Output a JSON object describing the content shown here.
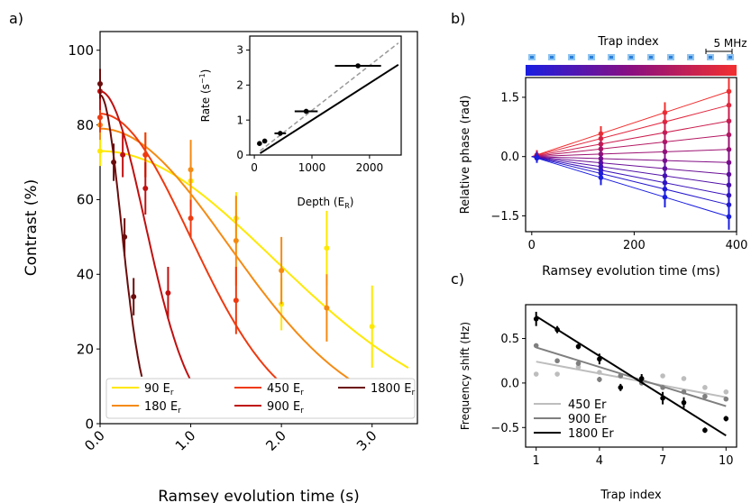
{
  "panel_labels": {
    "a": "a)",
    "b": "b)",
    "c": "c)"
  },
  "chart_data": [
    {
      "id": "a_main",
      "type": "line",
      "xlabel": "Ramsey evolution time (s)",
      "ylabel": "Contrast (%)",
      "xlim": [
        0,
        3.5
      ],
      "ylim": [
        0,
        105
      ],
      "xticks": [
        0,
        1,
        2,
        3
      ],
      "xtick_labels": [
        "0.0",
        "1.0",
        "2.0",
        "3.0"
      ],
      "yticks": [
        0,
        20,
        40,
        60,
        80,
        100
      ],
      "ytick_labels": [
        "0",
        "20",
        "40",
        "60",
        "80",
        "100"
      ],
      "legend_location": "lower-left",
      "series": [
        {
          "name": "90 E",
          "sub": "r",
          "color": "#ffe800",
          "points": [
            [
              0,
              73,
              4
            ],
            [
              1.0,
              65,
              7
            ],
            [
              1.5,
              55,
              7
            ],
            [
              2.0,
              32,
              7
            ],
            [
              2.5,
              47,
              10
            ],
            [
              3.0,
              26,
              11
            ]
          ],
          "fit": {
            "A": 73,
            "tau": 2.7,
            "n": 2,
            "xmax": 3.4
          }
        },
        {
          "name": "180 E",
          "sub": "r",
          "color": "#f58a12",
          "points": [
            [
              0,
              80,
              4
            ],
            [
              0.5,
              72,
              6
            ],
            [
              1.0,
              68,
              8
            ],
            [
              1.5,
              49,
              12
            ],
            [
              2.0,
              41,
              9
            ],
            [
              2.5,
              31,
              9
            ]
          ],
          "fit": {
            "A": 79,
            "tau": 2.0,
            "n": 2,
            "xmax": 2.9
          }
        },
        {
          "name": "450 E",
          "sub": "r",
          "color": "#ee3a10",
          "points": [
            [
              0,
              82,
              4
            ],
            [
              0.5,
              72,
              6
            ],
            [
              1.0,
              55,
              5
            ],
            [
              1.5,
              33,
              9
            ]
          ],
          "fit": {
            "A": 83,
            "tau": 1.4,
            "n": 2,
            "xmax": 1.95
          }
        },
        {
          "name": "900 E",
          "sub": "r",
          "color": "#c01010",
          "points": [
            [
              0,
              89,
              5
            ],
            [
              0.25,
              72,
              6
            ],
            [
              0.5,
              63,
              7
            ],
            [
              0.75,
              35,
              7
            ]
          ],
          "fit": {
            "A": 89,
            "tau": 0.7,
            "n": 2,
            "xmax": 1.0
          }
        },
        {
          "name": "1800 E",
          "sub": "r",
          "color": "#6b0c0c",
          "points": [
            [
              0,
              91,
              4
            ],
            [
              0.15,
              70,
              5
            ],
            [
              0.27,
              50,
              5
            ],
            [
              0.37,
              34,
              5
            ]
          ],
          "fit": {
            "A": 88,
            "tau": 0.33,
            "n": 2,
            "xmax": 0.46
          }
        }
      ]
    },
    {
      "id": "a_inset",
      "type": "scatter",
      "xlabel": "Depth (E",
      "xlabel_sub": "R",
      "xlabel_tail": ")",
      "ylabel": "Rate (s",
      "ylabel_sup": "−1",
      "ylabel_tail": ")",
      "xlim": [
        -80,
        2550
      ],
      "ylim": [
        0,
        3.4
      ],
      "xticks": [
        0,
        1000,
        2000
      ],
      "xtick_labels": [
        "0",
        "1000",
        "2000"
      ],
      "yticks": [
        0,
        1,
        2,
        3
      ],
      "ytick_labels": [
        "0",
        "1",
        "2",
        "3"
      ],
      "points": [
        [
          90,
          0.33,
          20
        ],
        [
          180,
          0.4,
          40
        ],
        [
          450,
          0.62,
          100
        ],
        [
          900,
          1.25,
          200
        ],
        [
          1800,
          2.55,
          400
        ]
      ],
      "lines": [
        {
          "style": "dashed",
          "color": "#999999",
          "x": [
            100,
            2500
          ],
          "y": [
            0.12,
            3.2
          ]
        },
        {
          "style": "solid",
          "color": "#000000",
          "x": [
            100,
            2500
          ],
          "y": [
            0.05,
            2.58
          ]
        }
      ]
    },
    {
      "id": "b_main",
      "type": "line",
      "title": "Trap index",
      "scale_label": "5 MHz",
      "xlabel": "Ramsey evolution time (ms)",
      "ylabel": "Relative phase (rad)",
      "xlim": [
        -12,
        400
      ],
      "ylim": [
        -1.9,
        2.0
      ],
      "xticks": [
        0,
        200,
        400
      ],
      "xtick_labels": [
        "0",
        "200",
        "400"
      ],
      "yticks": [
        -1.5,
        0,
        1.5
      ],
      "ytick_labels": [
        "−1.5",
        "0.0",
        "1.5"
      ],
      "times": [
        10,
        135,
        260,
        385
      ],
      "slopes": [
        1.65,
        1.3,
        0.9,
        0.55,
        0.18,
        -0.15,
        -0.45,
        -0.72,
        -0.98,
        -1.22,
        -1.52
      ],
      "colors": [
        "#f22f2f",
        "#e2273e",
        "#cc1e4f",
        "#b41862",
        "#9c1273",
        "#830f85",
        "#6a0e96",
        "#5010a8",
        "#3a14bb",
        "#2518cc",
        "#1a1ee0"
      ]
    },
    {
      "id": "c_main",
      "type": "scatter",
      "xlabel": "Trap index",
      "ylabel": "Frequency shift (Hz)",
      "xlim": [
        0.5,
        10.5
      ],
      "ylim": [
        -0.72,
        0.88
      ],
      "xticks": [
        1,
        4,
        7,
        10
      ],
      "xtick_labels": [
        "1",
        "4",
        "7",
        "10"
      ],
      "yticks": [
        -0.5,
        0,
        0.5
      ],
      "ytick_labels": [
        "−0.5",
        "0.0",
        "0.5"
      ],
      "legend_location": "lower-left",
      "series": [
        {
          "name": "450 Er",
          "color": "#bdbdbd",
          "y": [
            0.1,
            0.1,
            0.18,
            0.12,
            0.08,
            0.03,
            0.08,
            0.05,
            -0.05,
            -0.1
          ],
          "err": [
            0,
            0,
            0,
            0,
            0,
            0,
            0,
            0,
            0,
            0
          ],
          "fit": [
            0.24,
            -0.16
          ]
        },
        {
          "name": "900 Er",
          "color": "#7f7f7f",
          "y": [
            0.42,
            0.25,
            0.22,
            0.04,
            0.08,
            0.0,
            -0.05,
            -0.1,
            -0.15,
            -0.18
          ],
          "err": [
            0,
            0,
            0,
            0.03,
            0,
            0,
            0,
            0,
            0,
            0
          ],
          "fit": [
            0.4,
            -0.26
          ]
        },
        {
          "name": "1800 Er",
          "color": "#000000",
          "y": [
            0.72,
            0.6,
            0.41,
            0.27,
            -0.05,
            0.05,
            -0.17,
            -0.22,
            -0.53,
            -0.4
          ],
          "err": [
            0.08,
            0.04,
            0.03,
            0.06,
            0.04,
            0.05,
            0.07,
            0.06,
            0.03,
            0.03
          ],
          "fit": [
            0.75,
            -0.59
          ]
        }
      ]
    }
  ]
}
